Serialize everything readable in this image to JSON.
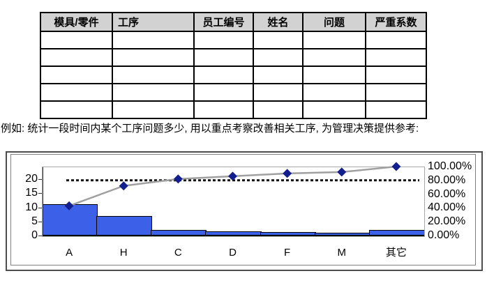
{
  "table": {
    "headers": [
      "模具/零件",
      "工序",
      "员工编号",
      "姓名",
      "问题",
      "严重系数"
    ],
    "empty_row_count": 5
  },
  "caption": "例如: 统计一段时间内某个工序问题多少, 用以重点考察改善相关工序, 为管理决策提供参考:",
  "colors": {
    "table_header_bg": "#d2d2d2",
    "bar_fill": "#3d60e8",
    "bar_border": "#000000",
    "cumulative_line": "#a0a0a0",
    "marker_fill": "#141f8f",
    "reference_line": "#111111",
    "frame_outer": "#4d4d4d",
    "frame_inner": "#808080"
  },
  "chart_data": {
    "type": "bar",
    "subtype": "pareto-with-cumulative-line",
    "title": "",
    "xlabel": "",
    "ylabel": "",
    "categories": [
      "A",
      "H",
      "C",
      "D",
      "F",
      "M",
      "其它"
    ],
    "series": [
      {
        "name": "count-bars",
        "values": [
          11,
          7,
          2,
          1.5,
          1.2,
          1,
          2
        ]
      },
      {
        "name": "cumulative-percent-line",
        "values": [
          43,
          72,
          82,
          86,
          90,
          92,
          100
        ]
      }
    ],
    "reference_line_pct": 80,
    "left_axis": {
      "tick_labels": [
        "20",
        "15",
        "10",
        "5",
        "0"
      ],
      "tick_values": [
        20,
        15,
        10,
        5,
        0
      ],
      "range": [
        0,
        24.4
      ]
    },
    "right_axis": {
      "tick_labels": [
        "100.00%",
        "80.00%",
        "60.00%",
        "40.00%",
        "20.00%",
        "0.00%"
      ],
      "tick_values": [
        100,
        80,
        60,
        40,
        20,
        0
      ],
      "range": [
        0,
        100
      ]
    },
    "grid": false,
    "legend": "none"
  }
}
